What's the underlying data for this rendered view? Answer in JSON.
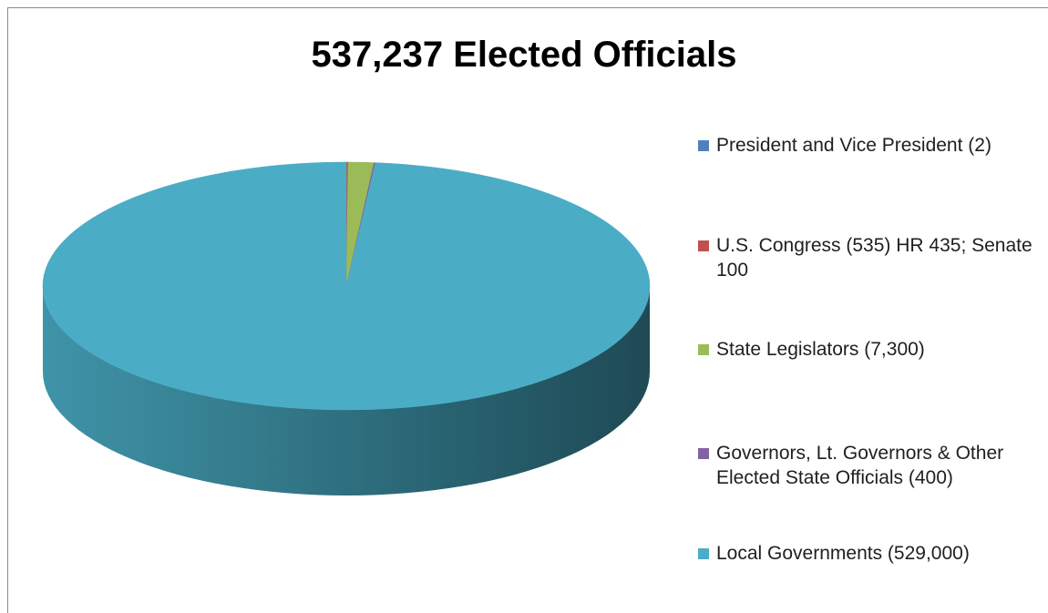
{
  "chart_data": {
    "type": "pie",
    "title": "537,237 Elected Officials",
    "style": "3d",
    "legend_position": "right",
    "slices": [
      {
        "label": "President and Vice President (2)",
        "value": 2,
        "color": "#4f81bd"
      },
      {
        "label": "U.S. Congress (535) HR 435; Senate 100",
        "value": 535,
        "color": "#c0504d"
      },
      {
        "label": "State Legislators (7,300)",
        "value": 7300,
        "color": "#9bbb59"
      },
      {
        "label": "Governors, Lt. Governors & Other Elected State Officials (400)",
        "value": 400,
        "color": "#8064a2"
      },
      {
        "label": "Local Governments (529,000)",
        "value": 529000,
        "color": "#4bacc6"
      }
    ]
  }
}
